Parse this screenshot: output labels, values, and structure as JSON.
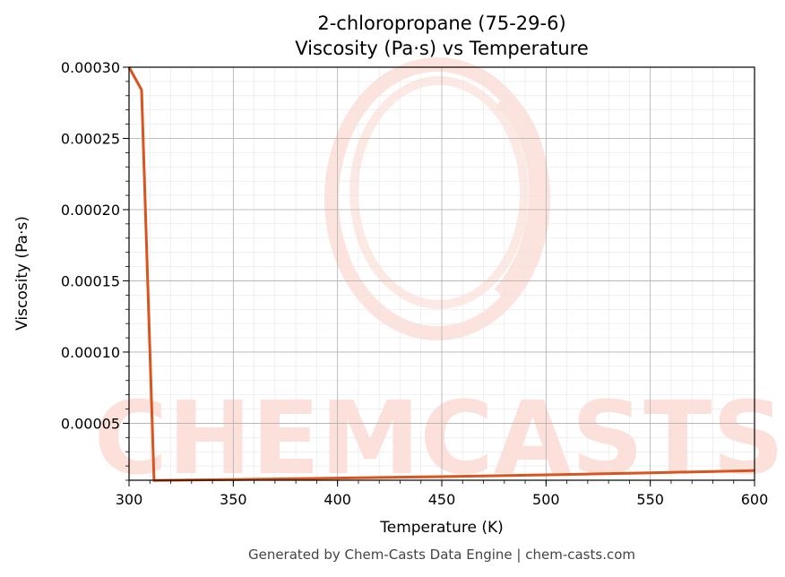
{
  "chart_data": {
    "type": "line",
    "title": "2-chloropropane (75-29-6)",
    "subtitle": "Viscosity (Pa·s) vs Temperature",
    "xlabel": "Temperature (K)",
    "ylabel": "Viscosity (Pa·s)",
    "xlim": [
      300,
      600
    ],
    "ylim": [
      1e-05,
      0.0003
    ],
    "x_ticks": [
      300,
      350,
      400,
      450,
      500,
      550,
      600
    ],
    "x_tick_labels": [
      "300",
      "350",
      "400",
      "450",
      "500",
      "550",
      "600"
    ],
    "y_ticks": [
      5e-05,
      0.0001,
      0.00015,
      0.0002,
      0.00025,
      0.0003
    ],
    "y_tick_labels": [
      "0.00005",
      "0.00010",
      "0.00015",
      "0.00020",
      "0.00025",
      "0.00030"
    ],
    "grid": true,
    "series": [
      {
        "color": "#d9541e",
        "x": [
          300,
          306,
          312,
          350,
          400,
          450,
          500,
          550,
          600
        ],
        "y": [
          0.0003,
          0.000284,
          9.8e-06,
          1.05e-05,
          1.15e-05,
          1.25e-05,
          1.38e-05,
          1.52e-05,
          1.67e-05
        ]
      }
    ]
  },
  "watermark": {
    "text": "CHEMCASTS",
    "color": "#fde0da"
  },
  "footer": "Generated by Chem-Casts Data Engine | chem-casts.com"
}
